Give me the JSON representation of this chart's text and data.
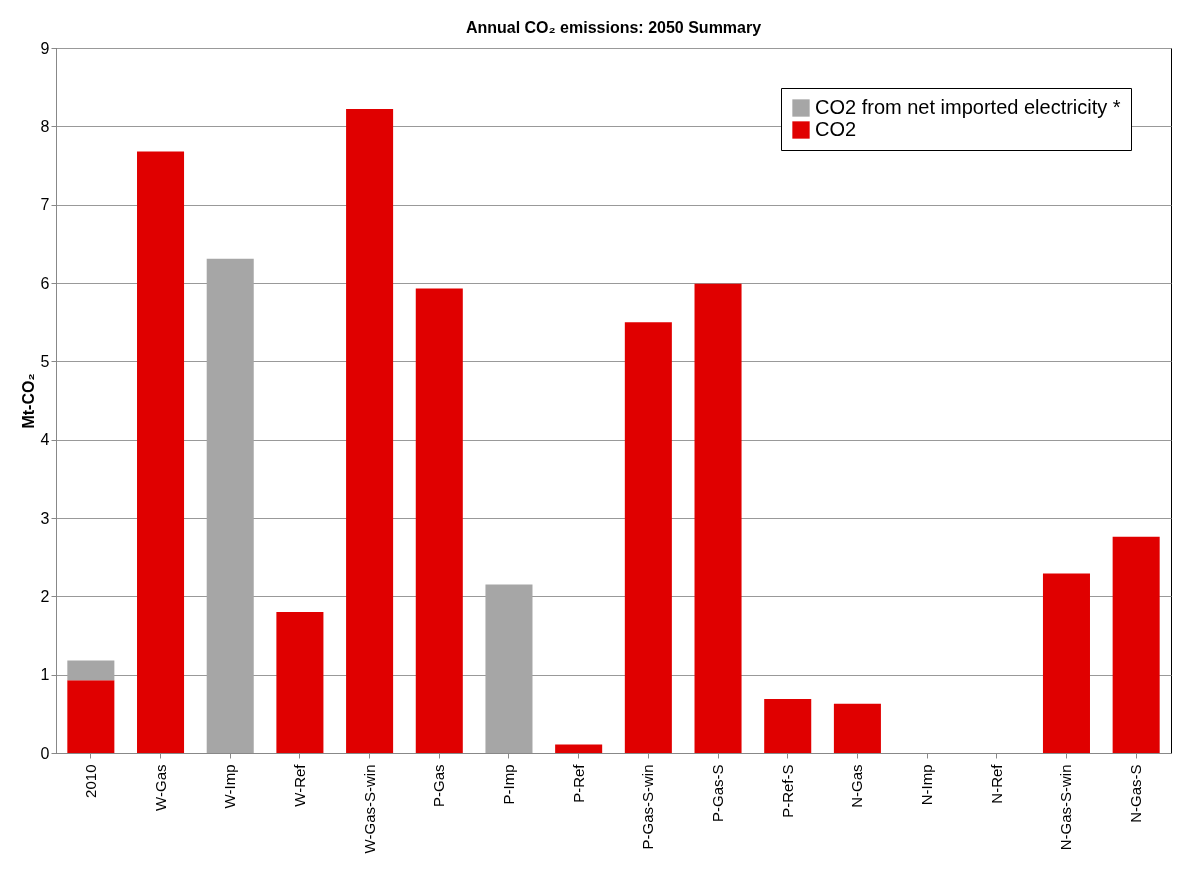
{
  "chart_data": {
    "type": "bar",
    "title": "Annual CO₂ emissions: 2050 Summary",
    "ylabel": "Mt-CO₂",
    "stacked": true,
    "categories": [
      "2010",
      "W-Gas",
      "W-Imp",
      "W-Ref",
      "W-Gas-S-win",
      "P-Gas",
      "P-Imp",
      "P-Ref",
      "P-Gas-S-win",
      "P-Gas-S",
      "P-Ref-S",
      "N-Gas",
      "N-Imp",
      "N-Ref",
      "N-Gas-S-win",
      "N-Gas-S"
    ],
    "series": [
      {
        "name": "CO2",
        "color": "#e00000",
        "values": [
          0.93,
          7.68,
          0,
          1.8,
          8.22,
          5.93,
          0,
          0.11,
          5.5,
          5.99,
          0.69,
          0.63,
          0,
          0,
          2.29,
          2.76
        ]
      },
      {
        "name": "CO2 from net imported electricity *",
        "color": "#a6a6a6",
        "values": [
          0.25,
          0,
          6.31,
          0,
          0,
          0,
          2.15,
          0,
          0,
          0,
          0,
          0,
          0,
          0,
          0,
          0
        ]
      }
    ],
    "ylim": [
      0,
      9
    ],
    "yticks": [
      0,
      1,
      2,
      3,
      4,
      5,
      6,
      7,
      8,
      9
    ],
    "grid": "y",
    "legend": "top right"
  }
}
